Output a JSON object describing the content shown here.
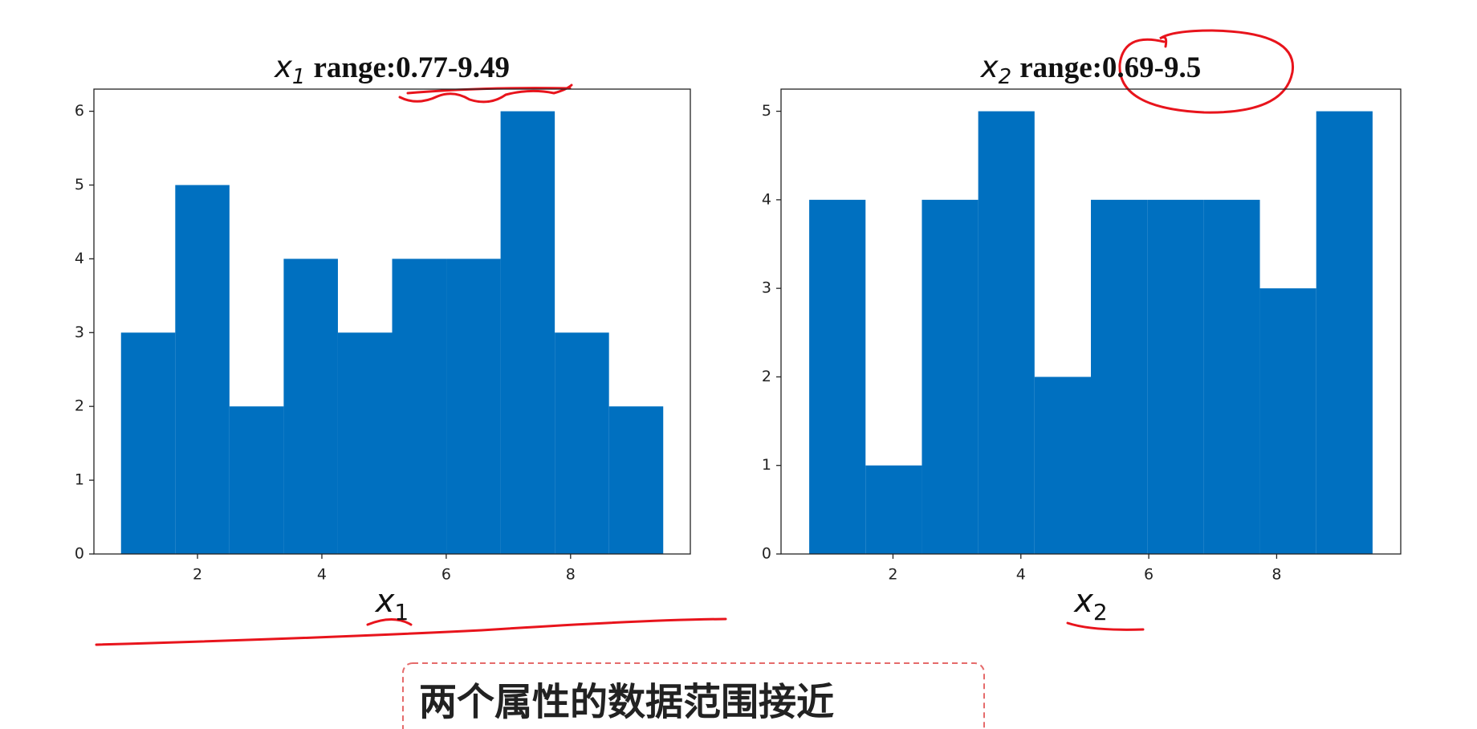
{
  "chart_data": [
    {
      "type": "histogram",
      "title": {
        "symbol": "x",
        "subscript": "1",
        "text": "range:0.77-9.49"
      },
      "xlabel": {
        "symbol": "x",
        "subscript": "1"
      },
      "bins": [
        0.77,
        1.642,
        2.514,
        3.386,
        4.258,
        5.13,
        6.002,
        6.874,
        7.746,
        8.618,
        9.49
      ],
      "values": [
        3,
        5,
        2,
        4,
        3,
        4,
        4,
        6,
        3,
        2
      ],
      "color": "#0070c0",
      "xlim": [
        0.334,
        9.926
      ],
      "ylim": [
        0,
        6.3
      ],
      "xticks": [
        2,
        4,
        6,
        8
      ],
      "yticks": [
        0,
        1,
        2,
        3,
        4,
        5,
        6
      ]
    },
    {
      "type": "histogram",
      "title": {
        "symbol": "x",
        "subscript": "2",
        "text": "range:0.69-9.5"
      },
      "xlabel": {
        "symbol": "x",
        "subscript": "2"
      },
      "bins": [
        0.69,
        1.571,
        2.452,
        3.333,
        4.214,
        5.095,
        5.976,
        6.857,
        7.738,
        8.619,
        9.5
      ],
      "values": [
        4,
        1,
        4,
        5,
        2,
        4,
        4,
        4,
        3,
        5
      ],
      "color": "#0070c0",
      "xlim": [
        0.2495,
        9.9405
      ],
      "ylim": [
        0,
        5.25
      ],
      "xticks": [
        2,
        4,
        6,
        8
      ],
      "yticks": [
        0,
        1,
        2,
        3,
        4,
        5
      ]
    }
  ],
  "caption": "两个属性的数据范围接近"
}
